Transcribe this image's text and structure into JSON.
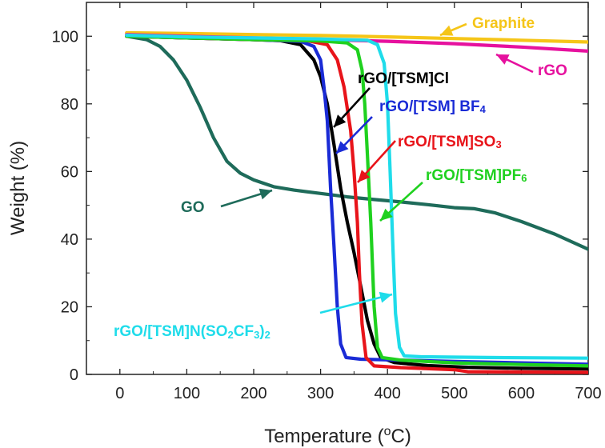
{
  "chart_data": {
    "type": "line",
    "xlabel": "Temperature (°C)",
    "ylabel": "Weight (%)",
    "xlim": [
      -50,
      700
    ],
    "ylim": [
      0,
      110
    ],
    "x_ticks": [
      "0",
      "100",
      "200",
      "300",
      "400",
      "500",
      "600",
      "700"
    ],
    "y_ticks": [
      "0",
      "20",
      "40",
      "60",
      "80",
      "100"
    ],
    "grid": false,
    "series": [
      {
        "name": "Graphite",
        "color": "#f5c518",
        "points": [
          [
            10,
            101
          ],
          [
            100,
            100.8
          ],
          [
            200,
            100.5
          ],
          [
            300,
            100.2
          ],
          [
            400,
            99.8
          ],
          [
            500,
            99.3
          ],
          [
            600,
            98.8
          ],
          [
            700,
            98.3
          ]
        ]
      },
      {
        "name": "rGO",
        "color": "#e6119e",
        "points": [
          [
            10,
            100.5
          ],
          [
            100,
            100
          ],
          [
            200,
            99.5
          ],
          [
            300,
            99
          ],
          [
            400,
            98.5
          ],
          [
            500,
            97.8
          ],
          [
            600,
            96.8
          ],
          [
            700,
            95.6
          ]
        ]
      },
      {
        "name": "GO",
        "color": "#1e6b5a",
        "points": [
          [
            10,
            100
          ],
          [
            40,
            99
          ],
          [
            60,
            97
          ],
          [
            80,
            93
          ],
          [
            100,
            87
          ],
          [
            120,
            79
          ],
          [
            140,
            70
          ],
          [
            160,
            63
          ],
          [
            180,
            59.5
          ],
          [
            200,
            57.5
          ],
          [
            230,
            55.5
          ],
          [
            260,
            54.5
          ],
          [
            300,
            53.5
          ],
          [
            340,
            52.5
          ],
          [
            380,
            51.7
          ],
          [
            420,
            51
          ],
          [
            460,
            50.2
          ],
          [
            500,
            49.3
          ],
          [
            530,
            49
          ],
          [
            560,
            47.8
          ],
          [
            600,
            45.2
          ],
          [
            650,
            41.5
          ],
          [
            700,
            37
          ]
        ]
      },
      {
        "name": "rGO/[TSM]Cl",
        "color": "#000000",
        "points": [
          [
            10,
            100
          ],
          [
            100,
            99.5
          ],
          [
            200,
            99
          ],
          [
            240,
            98.7
          ],
          [
            270,
            97.5
          ],
          [
            290,
            93
          ],
          [
            300,
            88
          ],
          [
            310,
            80
          ],
          [
            320,
            68
          ],
          [
            330,
            55
          ],
          [
            340,
            45
          ],
          [
            350,
            36
          ],
          [
            360,
            26
          ],
          [
            370,
            16
          ],
          [
            380,
            9
          ],
          [
            390,
            5
          ],
          [
            410,
            3.5
          ],
          [
            460,
            2.6
          ],
          [
            520,
            2.1
          ],
          [
            600,
            1.8
          ],
          [
            700,
            1.6
          ]
        ]
      },
      {
        "name": "rGO/[TSM] BF4",
        "color": "#1a2bd6",
        "points": [
          [
            10,
            100
          ],
          [
            100,
            99.5
          ],
          [
            200,
            99
          ],
          [
            270,
            98.5
          ],
          [
            290,
            97
          ],
          [
            300,
            93
          ],
          [
            305,
            85
          ],
          [
            310,
            75
          ],
          [
            315,
            55
          ],
          [
            320,
            38
          ],
          [
            325,
            20
          ],
          [
            330,
            9
          ],
          [
            338,
            5
          ],
          [
            360,
            4.5
          ],
          [
            420,
            4.2
          ],
          [
            500,
            3.8
          ],
          [
            600,
            3.4
          ],
          [
            700,
            3
          ]
        ]
      },
      {
        "name": "rGO/[TSM]SO3",
        "color": "#e8141a",
        "points": [
          [
            10,
            100
          ],
          [
            100,
            99.5
          ],
          [
            200,
            99
          ],
          [
            280,
            98.7
          ],
          [
            310,
            97.5
          ],
          [
            325,
            93
          ],
          [
            335,
            85
          ],
          [
            345,
            72
          ],
          [
            350,
            60
          ],
          [
            355,
            45
          ],
          [
            358,
            30
          ],
          [
            362,
            15
          ],
          [
            368,
            5
          ],
          [
            380,
            2.5
          ],
          [
            420,
            2
          ],
          [
            500,
            1.4
          ],
          [
            520,
            0.8
          ],
          [
            600,
            0.7
          ],
          [
            700,
            0.6
          ]
        ]
      },
      {
        "name": "rGO/[TSM]PF6",
        "color": "#1fd11f",
        "points": [
          [
            10,
            100
          ],
          [
            100,
            99.5
          ],
          [
            200,
            99
          ],
          [
            300,
            98.6
          ],
          [
            340,
            98
          ],
          [
            355,
            96
          ],
          [
            362,
            90
          ],
          [
            366,
            80
          ],
          [
            370,
            65
          ],
          [
            375,
            45
          ],
          [
            380,
            20
          ],
          [
            385,
            8
          ],
          [
            392,
            5
          ],
          [
            420,
            4.2
          ],
          [
            500,
            3.4
          ],
          [
            600,
            2.9
          ],
          [
            700,
            2.5
          ]
        ]
      },
      {
        "name": "rGO/[TSM]N(SO2CF3)2",
        "color": "#1fdcea",
        "points": [
          [
            10,
            100.3
          ],
          [
            100,
            99.8
          ],
          [
            200,
            99.5
          ],
          [
            300,
            99.2
          ],
          [
            370,
            98.8
          ],
          [
            385,
            97.5
          ],
          [
            395,
            92
          ],
          [
            400,
            80
          ],
          [
            404,
            60
          ],
          [
            408,
            38
          ],
          [
            412,
            18
          ],
          [
            418,
            8
          ],
          [
            425,
            5.5
          ],
          [
            450,
            5.2
          ],
          [
            550,
            5
          ],
          [
            700,
            4.8
          ]
        ]
      }
    ]
  },
  "labels": {
    "graphite": "Graphite",
    "rgo": "rGO",
    "go": "GO",
    "cl": "rGO/[TSM]Cl",
    "bf4_main": "rGO/[TSM] BF",
    "bf4_sub": "4",
    "so3_main": "rGO/[TSM]SO",
    "so3_sub": "3",
    "pf6_main": "rGO/[TSM]PF",
    "pf6_sub": "6",
    "tfsi_a": "rGO/[TSM]N(SO",
    "tfsi_s1": "2",
    "tfsi_b": "CF",
    "tfsi_s2": "3",
    "tfsi_c": ")",
    "tfsi_s3": "2"
  }
}
